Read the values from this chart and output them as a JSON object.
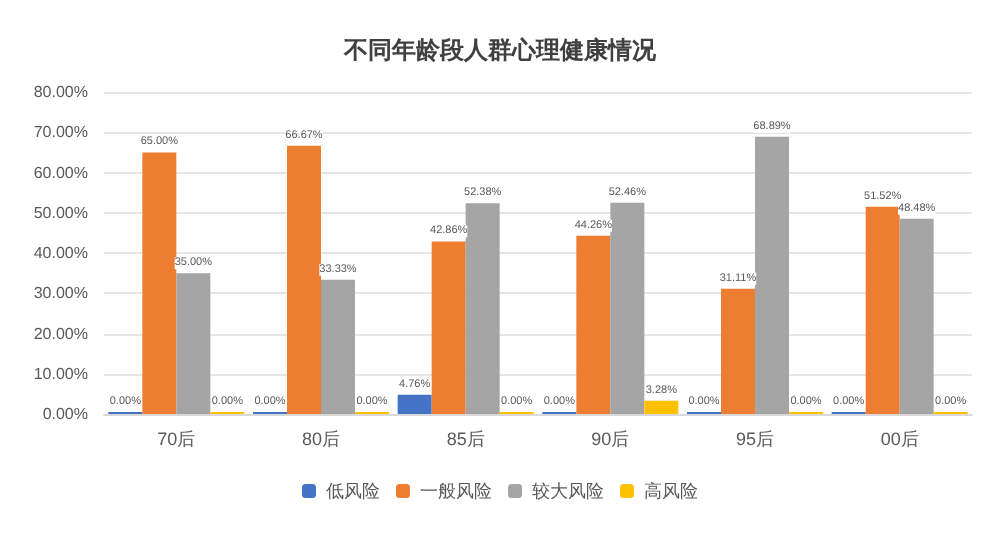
{
  "chart_data": {
    "type": "bar",
    "title": "不同年龄段人群心理健康情况",
    "categories": [
      "70后",
      "80后",
      "85后",
      "90后",
      "95后",
      "00后"
    ],
    "series": [
      {
        "name": "低风险",
        "color": "#4472c4",
        "values": [
          0,
          0,
          4.76,
          0,
          0,
          0
        ],
        "value_labels": [
          "0.00%",
          "0.00%",
          "4.76%",
          "0.00%",
          "0.00%",
          "0.00%"
        ]
      },
      {
        "name": "一般风险",
        "color": "#ed7d31",
        "values": [
          65,
          66.67,
          42.86,
          44.26,
          31.11,
          51.52
        ],
        "value_labels": [
          "65.00%",
          "66.67%",
          "42.86%",
          "44.26%",
          "31.11%",
          "51.52%"
        ]
      },
      {
        "name": "较大风险",
        "color": "#a5a5a5",
        "values": [
          35,
          33.33,
          52.38,
          52.46,
          68.89,
          48.48
        ],
        "value_labels": [
          "35.00%",
          "33.33%",
          "52.38%",
          "52.46%",
          "68.89%",
          "48.48%"
        ]
      },
      {
        "name": "高风险",
        "color": "#ffc000",
        "values": [
          0,
          0,
          0,
          3.28,
          0,
          0
        ],
        "value_labels": [
          "0.00%",
          "0.00%",
          "0.00%",
          "3.28%",
          "0.00%",
          "0.00%"
        ]
      }
    ],
    "ylim": [
      0,
      80
    ],
    "yticks": [
      {
        "value": 0,
        "label": "0.00%"
      },
      {
        "value": 10,
        "label": "10.00%"
      },
      {
        "value": 20,
        "label": "20.00%"
      },
      {
        "value": 30,
        "label": "30.00%"
      },
      {
        "value": 40,
        "label": "40.00%"
      },
      {
        "value": 50,
        "label": "50.00%"
      },
      {
        "value": 60,
        "label": "60.00%"
      },
      {
        "value": 70,
        "label": "70.00%"
      },
      {
        "value": 80,
        "label": "80.00%"
      }
    ],
    "grid": "y",
    "legend": "bottom"
  }
}
